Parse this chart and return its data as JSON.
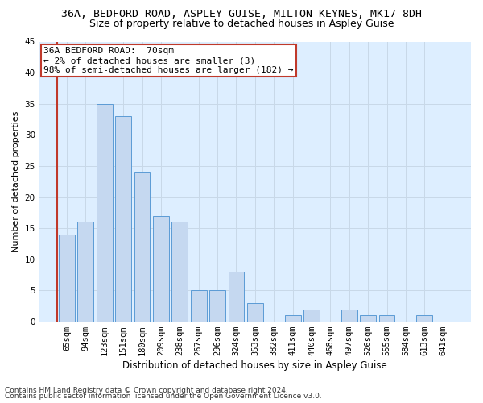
{
  "title1": "36A, BEDFORD ROAD, ASPLEY GUISE, MILTON KEYNES, MK17 8DH",
  "title2": "Size of property relative to detached houses in Aspley Guise",
  "xlabel": "Distribution of detached houses by size in Aspley Guise",
  "ylabel": "Number of detached properties",
  "categories": [
    "65sqm",
    "94sqm",
    "123sqm",
    "151sqm",
    "180sqm",
    "209sqm",
    "238sqm",
    "267sqm",
    "296sqm",
    "324sqm",
    "353sqm",
    "382sqm",
    "411sqm",
    "440sqm",
    "468sqm",
    "497sqm",
    "526sqm",
    "555sqm",
    "584sqm",
    "613sqm",
    "641sqm"
  ],
  "values": [
    14,
    16,
    35,
    33,
    24,
    17,
    16,
    5,
    5,
    8,
    3,
    0,
    1,
    2,
    0,
    2,
    1,
    1,
    0,
    1,
    0
  ],
  "bar_color": "#c5d8f0",
  "bar_edge_color": "#5b9bd5",
  "annotation_box_text": "36A BEDFORD ROAD:  70sqm\n← 2% of detached houses are smaller (3)\n98% of semi-detached houses are larger (182) →",
  "annotation_box_color": "#ffffff",
  "annotation_box_edge_color": "#c0392b",
  "red_line_color": "#c0392b",
  "ylim": [
    0,
    45
  ],
  "yticks": [
    0,
    5,
    10,
    15,
    20,
    25,
    30,
    35,
    40,
    45
  ],
  "grid_color": "#c8d8e8",
  "bg_color": "#ddeeff",
  "footer1": "Contains HM Land Registry data © Crown copyright and database right 2024.",
  "footer2": "Contains public sector information licensed under the Open Government Licence v3.0.",
  "title1_fontsize": 9.5,
  "title2_fontsize": 9,
  "xlabel_fontsize": 8.5,
  "ylabel_fontsize": 8,
  "tick_fontsize": 7.5,
  "annotation_fontsize": 8,
  "footer_fontsize": 6.5
}
